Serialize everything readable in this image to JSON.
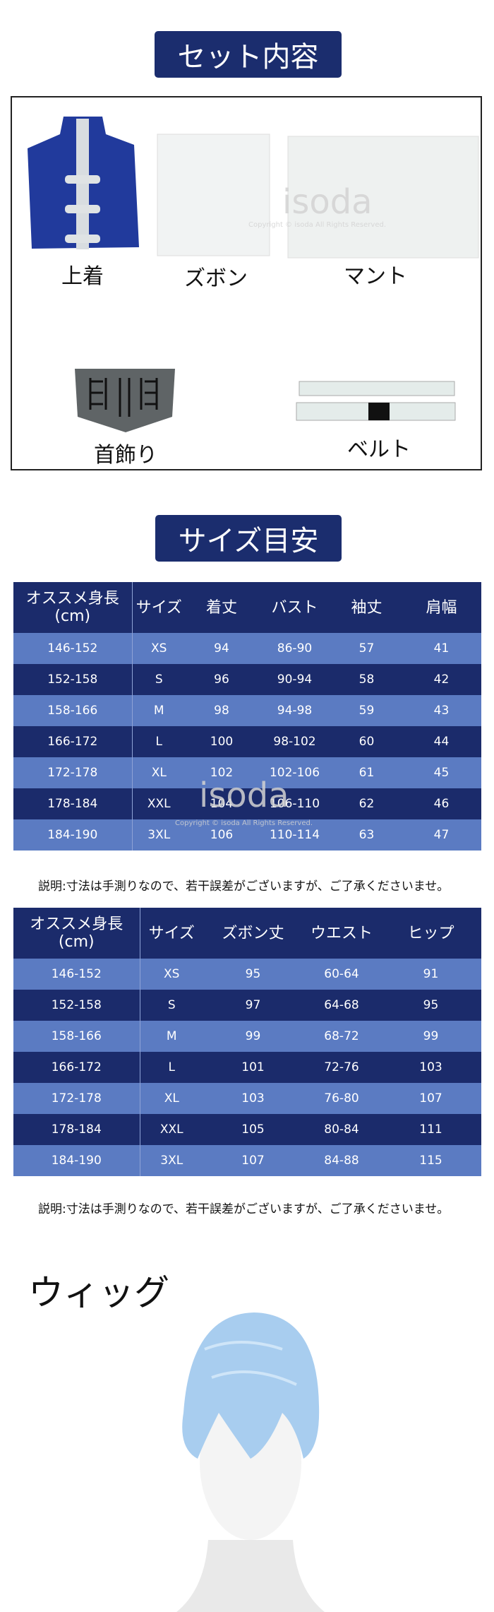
{
  "set_contents": {
    "title": "セット内容",
    "items": [
      "上着",
      "ズボン",
      "マント",
      "首飾り",
      "ベルト"
    ],
    "watermark": "isoda",
    "copyright": "Copyright © isoda All Rights Reserved."
  },
  "size_guide": {
    "title": "サイズ目安",
    "table1": {
      "header": [
        "オススメ身長\n(cm)",
        "サイズ",
        "着丈",
        "バスト",
        "袖丈",
        "肩幅"
      ],
      "rows": [
        [
          "146-152",
          "XS",
          94,
          "86-90",
          57,
          41
        ],
        [
          "152-158",
          "S",
          96,
          "90-94",
          58,
          42
        ],
        [
          "158-166",
          "M",
          98,
          "94-98",
          59,
          43
        ],
        [
          "166-172",
          "L",
          100,
          "98-102",
          60,
          44
        ],
        [
          "172-178",
          "XL",
          102,
          "102-106",
          61,
          45
        ],
        [
          "178-184",
          "XXL",
          104,
          "106-110",
          62,
          46
        ],
        [
          "184-190",
          "3XL",
          106,
          "110-114",
          63,
          47
        ]
      ]
    },
    "note1": "説明:寸法は手測りなので、若干誤差がございますが、ご了承くださいませ。",
    "table2": {
      "header": [
        "オススメ身長\n(cm)",
        "サイズ",
        "ズボン丈",
        "ウエスト",
        "ヒップ"
      ],
      "rows": [
        [
          "146-152",
          "XS",
          95,
          "60-64",
          91
        ],
        [
          "152-158",
          "S",
          97,
          "64-68",
          95
        ],
        [
          "158-166",
          "M",
          99,
          "68-72",
          99
        ],
        [
          "166-172",
          "L",
          101,
          "72-76",
          103
        ],
        [
          "172-178",
          "XL",
          103,
          "76-80",
          107
        ],
        [
          "178-184",
          "XXL",
          105,
          "80-84",
          111
        ],
        [
          "184-190",
          "3XL",
          107,
          "84-88",
          115
        ]
      ]
    },
    "note2": "説明:寸法は手測りなので、若干誤差がございますが、ご了承くださいませ。"
  },
  "wig": {
    "title": "ウィッグ"
  }
}
